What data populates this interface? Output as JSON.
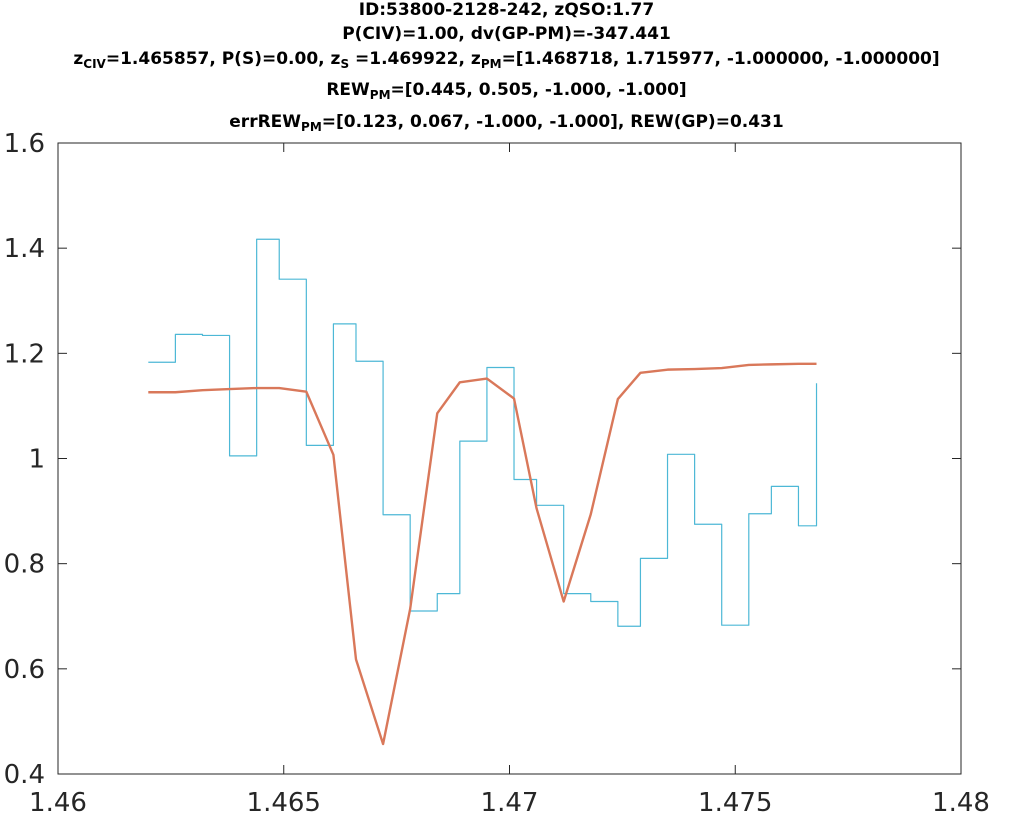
{
  "title": {
    "line1": "ID:53800-2128-242, zQSO:1.77",
    "line2": "P(CIV)=1.00, dv(GP-PM)=-347.441",
    "line3": {
      "z1_base": "z",
      "z1_sub": "CIV",
      "z1_val": "=1.465857, P(S)=0.00, ",
      "z2_base": "z",
      "z2_sub": "S",
      "z2_val": " =1.469922, ",
      "z3_base": "z",
      "z3_sub": "PM",
      "z3_val": "=[1.468718, 1.715977, -1.000000, -1.000000]"
    },
    "line4": {
      "base": "REW",
      "sub": "PM",
      "val": "=[0.445, 0.505, -1.000, -1.000]"
    },
    "line5": {
      "base": "errREW",
      "sub": "PM",
      "val": "=[0.123, 0.067, -1.000, -1.000], REW(GP)=0.431"
    }
  },
  "chart_data": {
    "type": "line",
    "xlim": [
      1.46,
      1.48
    ],
    "ylim": [
      0.4,
      1.6
    ],
    "xticks": [
      "1.46",
      "1.465",
      "1.47",
      "1.475",
      "1.48"
    ],
    "yticks": [
      "0.4",
      "0.6",
      "0.8",
      "1",
      "1.2",
      "1.4",
      "1.6"
    ],
    "grid": false,
    "series": [
      {
        "style": "step",
        "color": "#4db8d6",
        "x": [
          1.462,
          1.4626,
          1.4632,
          1.4638,
          1.4644,
          1.4649,
          1.4655,
          1.4661,
          1.4666,
          1.4672,
          1.4678,
          1.4684,
          1.4689,
          1.4695,
          1.4701,
          1.4706,
          1.4712,
          1.4718,
          1.4724,
          1.4729,
          1.4735,
          1.4741,
          1.4747,
          1.4753,
          1.4758,
          1.4764,
          1.4768
        ],
        "y": [
          1.183,
          1.236,
          1.234,
          1.005,
          1.417,
          1.341,
          1.025,
          1.256,
          1.185,
          0.893,
          0.71,
          0.743,
          1.033,
          1.173,
          0.96,
          0.911,
          0.743,
          0.728,
          0.681,
          0.81,
          1.008,
          0.875,
          0.683,
          0.895,
          0.947,
          0.872,
          1.143
        ]
      },
      {
        "style": "line",
        "color": "#d9785a",
        "x": [
          1.462,
          1.4626,
          1.4632,
          1.4638,
          1.4644,
          1.4649,
          1.4655,
          1.4661,
          1.4666,
          1.4672,
          1.4678,
          1.4684,
          1.4689,
          1.4695,
          1.4701,
          1.4706,
          1.4712,
          1.4718,
          1.4724,
          1.4729,
          1.4735,
          1.4741,
          1.4747,
          1.4753,
          1.4758,
          1.4764,
          1.4768
        ],
        "y": [
          1.126,
          1.126,
          1.13,
          1.132,
          1.134,
          1.134,
          1.127,
          1.007,
          0.618,
          0.457,
          0.714,
          1.086,
          1.145,
          1.152,
          1.114,
          0.905,
          0.728,
          0.894,
          1.113,
          1.163,
          1.169,
          1.17,
          1.172,
          1.178,
          1.179,
          1.18,
          1.18
        ]
      }
    ]
  }
}
